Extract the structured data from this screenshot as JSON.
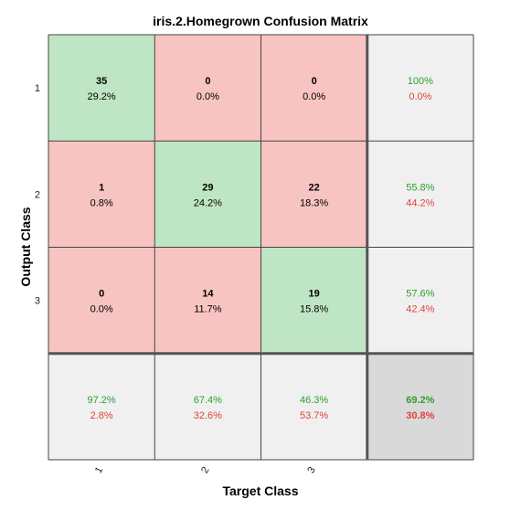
{
  "chart_data": {
    "type": "heatmap",
    "title": "iris.2.Homegrown Confusion Matrix",
    "xlabel": "Target Class",
    "ylabel": "Output Class",
    "x_tick_labels": [
      "1",
      "2",
      "3"
    ],
    "y_tick_labels": [
      "1",
      "2",
      "3"
    ],
    "counts": [
      [
        35,
        0,
        0
      ],
      [
        1,
        29,
        22
      ],
      [
        0,
        14,
        19
      ]
    ],
    "percentages": [
      [
        "29.2%",
        "0.0%",
        "0.0%"
      ],
      [
        "0.8%",
        "24.2%",
        "18.3%"
      ],
      [
        "0.0%",
        "11.7%",
        "15.8%"
      ]
    ],
    "row_summary": [
      {
        "correct": "100%",
        "incorrect": "0.0%"
      },
      {
        "correct": "55.8%",
        "incorrect": "44.2%"
      },
      {
        "correct": "57.6%",
        "incorrect": "42.4%"
      }
    ],
    "column_summary": [
      {
        "correct": "97.2%",
        "incorrect": "2.8%"
      },
      {
        "correct": "67.4%",
        "incorrect": "32.6%"
      },
      {
        "correct": "46.3%",
        "incorrect": "53.7%"
      }
    ],
    "overall": {
      "correct": "69.2%",
      "incorrect": "30.8%"
    }
  },
  "colors": {
    "diagonal_fill": "#bfe6c4",
    "offdiagonal_fill": "#f7c4c1",
    "summary_fill": "#f0f0f0",
    "overall_fill": "#d9d9d9",
    "correct_text": "#2ca02c",
    "incorrect_text": "#e0413a",
    "grid_line": "#444444",
    "divider_line": "#555555"
  }
}
